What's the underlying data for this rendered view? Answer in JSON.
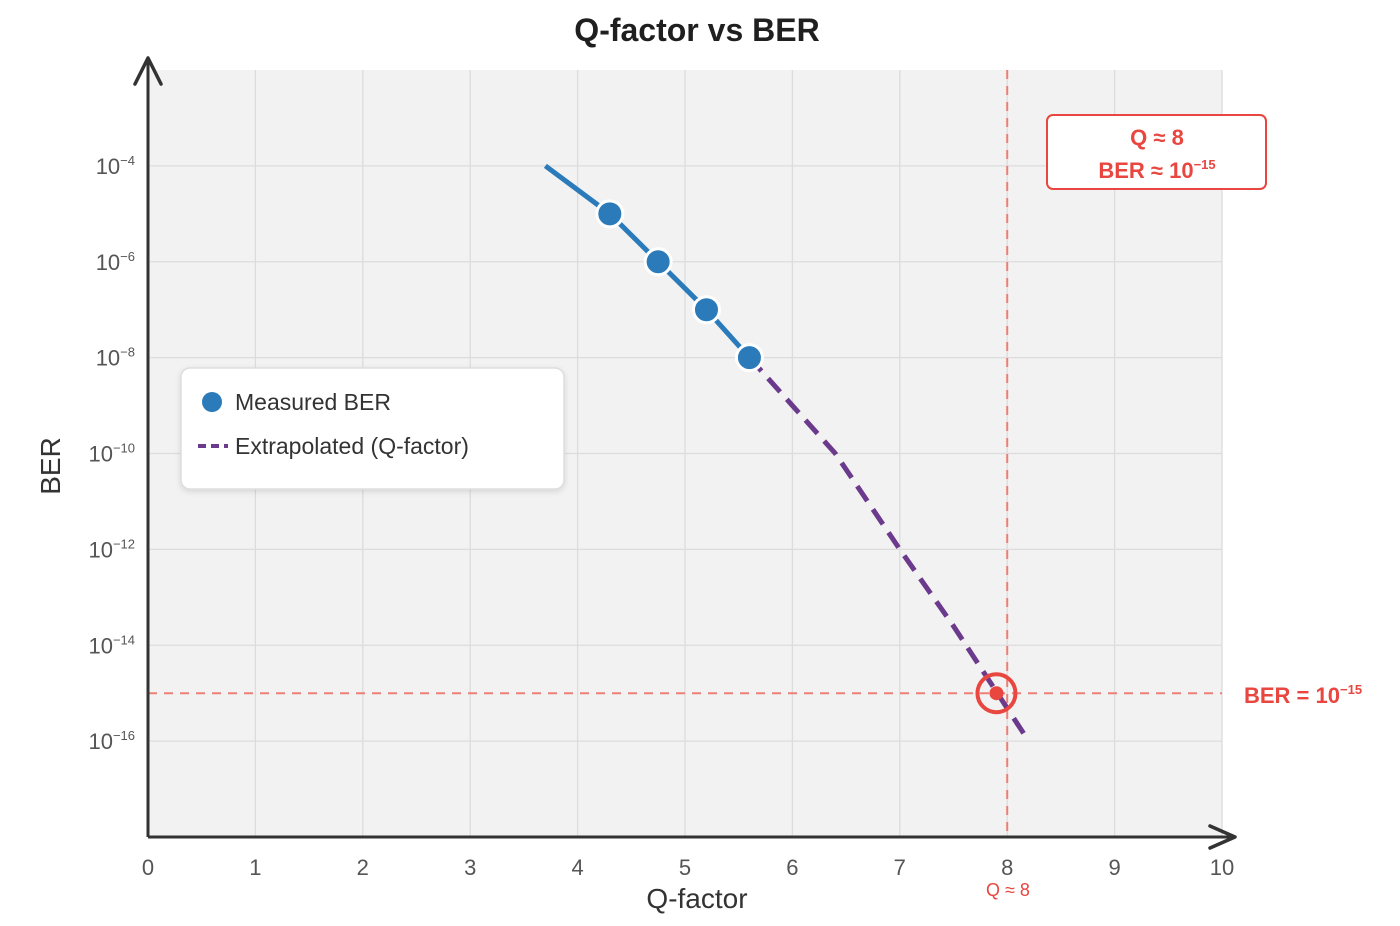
{
  "chart_data": {
    "type": "line",
    "title": "Q-factor vs BER",
    "xlabel": "Q-factor",
    "ylabel": "BER",
    "xlim": [
      0,
      10
    ],
    "ylim_log10": [
      -18,
      -2
    ],
    "x_ticks": [
      "0",
      "1",
      "2",
      "3",
      "4",
      "5",
      "6",
      "7",
      "8",
      "9",
      "10"
    ],
    "y_ticks": [
      {
        "base": "10",
        "exp": "−4",
        "log10": -4
      },
      {
        "base": "10",
        "exp": "−6",
        "log10": -6
      },
      {
        "base": "10",
        "exp": "−8",
        "log10": -8
      },
      {
        "base": "10",
        "exp": "−10",
        "log10": -10
      },
      {
        "base": "10",
        "exp": "−12",
        "log10": -12
      },
      {
        "base": "10",
        "exp": "−14",
        "log10": -14
      },
      {
        "base": "10",
        "exp": "−16",
        "log10": -16
      }
    ],
    "grid": true,
    "legend_position": "middle-left",
    "series": [
      {
        "name": "Measured BER",
        "style": "solid line with markers",
        "color": "#2b7bbb",
        "line_x": [
          3.7,
          4.3,
          4.75,
          5.2,
          5.6
        ],
        "line_log10_y": [
          -4.0,
          -5.0,
          -6.0,
          -7.0,
          -8.0
        ],
        "marker_x": [
          4.3,
          4.75,
          5.2,
          5.6
        ],
        "marker_log10_y": [
          -5.0,
          -6.0,
          -7.0,
          -8.0
        ]
      },
      {
        "name": "Extrapolated (Q-factor)",
        "style": "dashed",
        "color": "#6b3a8c",
        "x": [
          5.6,
          6.0,
          6.4,
          7.0,
          7.5,
          8.2
        ],
        "log10_y": [
          -8.0,
          -9.0,
          -10.0,
          -12.0,
          -13.6,
          -16.0
        ]
      }
    ],
    "reference_lines": {
      "horizontal_log10_y": -15,
      "horizontal_label": {
        "text": "BER = 10",
        "exp": "−15"
      },
      "vertical_x": 8,
      "vertical_label": "Q ≈ 8"
    },
    "target_point": {
      "x": 7.9,
      "log10_y": -15
    },
    "annotation_box": {
      "line1": "Q ≈ 8",
      "line2": {
        "text": "BER ≈ 10",
        "exp": "−15"
      }
    },
    "colors": {
      "measured": "#2b7bbb",
      "extrapolated": "#6b3a8c",
      "annotation": "#e8463f",
      "plot_background": "#f2f2f2",
      "grid": "#dcdcdc"
    }
  }
}
